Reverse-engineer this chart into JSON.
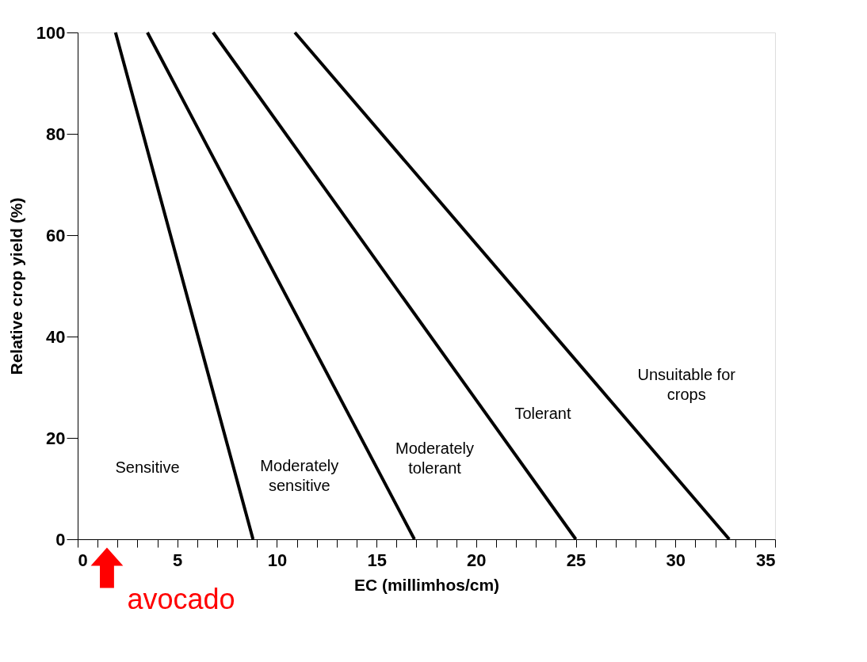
{
  "chart_data": {
    "type": "line",
    "xlabel": "EC (millimhos/cm)",
    "ylabel": "Relative crop yield (%)",
    "series": [
      {
        "x": [
          1.9,
          8.8
        ],
        "values": [
          100,
          0
        ],
        "color": "#000000"
      },
      {
        "x": [
          3.5,
          16.9
        ],
        "values": [
          100,
          0
        ],
        "color": "#000000"
      },
      {
        "x": [
          6.8,
          25
        ],
        "values": [
          100,
          0
        ],
        "color": "#000000"
      },
      {
        "x": [
          10.9,
          32.7
        ],
        "values": [
          100,
          0
        ],
        "color": "#000000"
      }
    ],
    "xlim": [
      0,
      35
    ],
    "ylim": [
      0,
      100
    ],
    "xticks": [
      0,
      {
        "value": 1,
        "label": null
      },
      {
        "value": 2,
        "label": null
      },
      {
        "value": 3,
        "label": null
      },
      {
        "value": 4,
        "label": null
      },
      5,
      {
        "value": 6,
        "label": null
      },
      {
        "value": 7,
        "label": null
      },
      {
        "value": 8,
        "label": null
      },
      {
        "value": 9,
        "label": null
      },
      10,
      {
        "value": 11,
        "label": null
      },
      {
        "value": 12,
        "label": null
      },
      {
        "value": 13,
        "label": null
      },
      {
        "value": 14,
        "label": null
      },
      15,
      {
        "value": 16,
        "label": null
      },
      {
        "value": 17,
        "label": null
      },
      {
        "value": 18,
        "label": null
      },
      {
        "value": 19,
        "label": null
      },
      20,
      {
        "value": 21,
        "label": null
      },
      {
        "value": 22,
        "label": null
      },
      {
        "value": 23,
        "label": null
      },
      {
        "value": 24,
        "label": null
      },
      25,
      {
        "value": 26,
        "label": null
      },
      {
        "value": 27,
        "label": null
      },
      {
        "value": 28,
        "label": null
      },
      {
        "value": 29,
        "label": null
      },
      30,
      {
        "value": 31,
        "label": null
      },
      {
        "value": 32,
        "label": null
      },
      {
        "value": 33,
        "label": null
      },
      {
        "value": 34,
        "label": null
      },
      35
    ],
    "yticks": [
      0,
      20,
      40,
      60,
      80,
      100
    ],
    "annotations": [
      "Sensitive",
      "Moderately sensitive",
      "Moderately tolerant",
      "Tolerant",
      "Unsuitable for crops",
      "avocado"
    ],
    "grid": false,
    "legend": false,
    "marker": "none",
    "line_style": "solid"
  }
}
